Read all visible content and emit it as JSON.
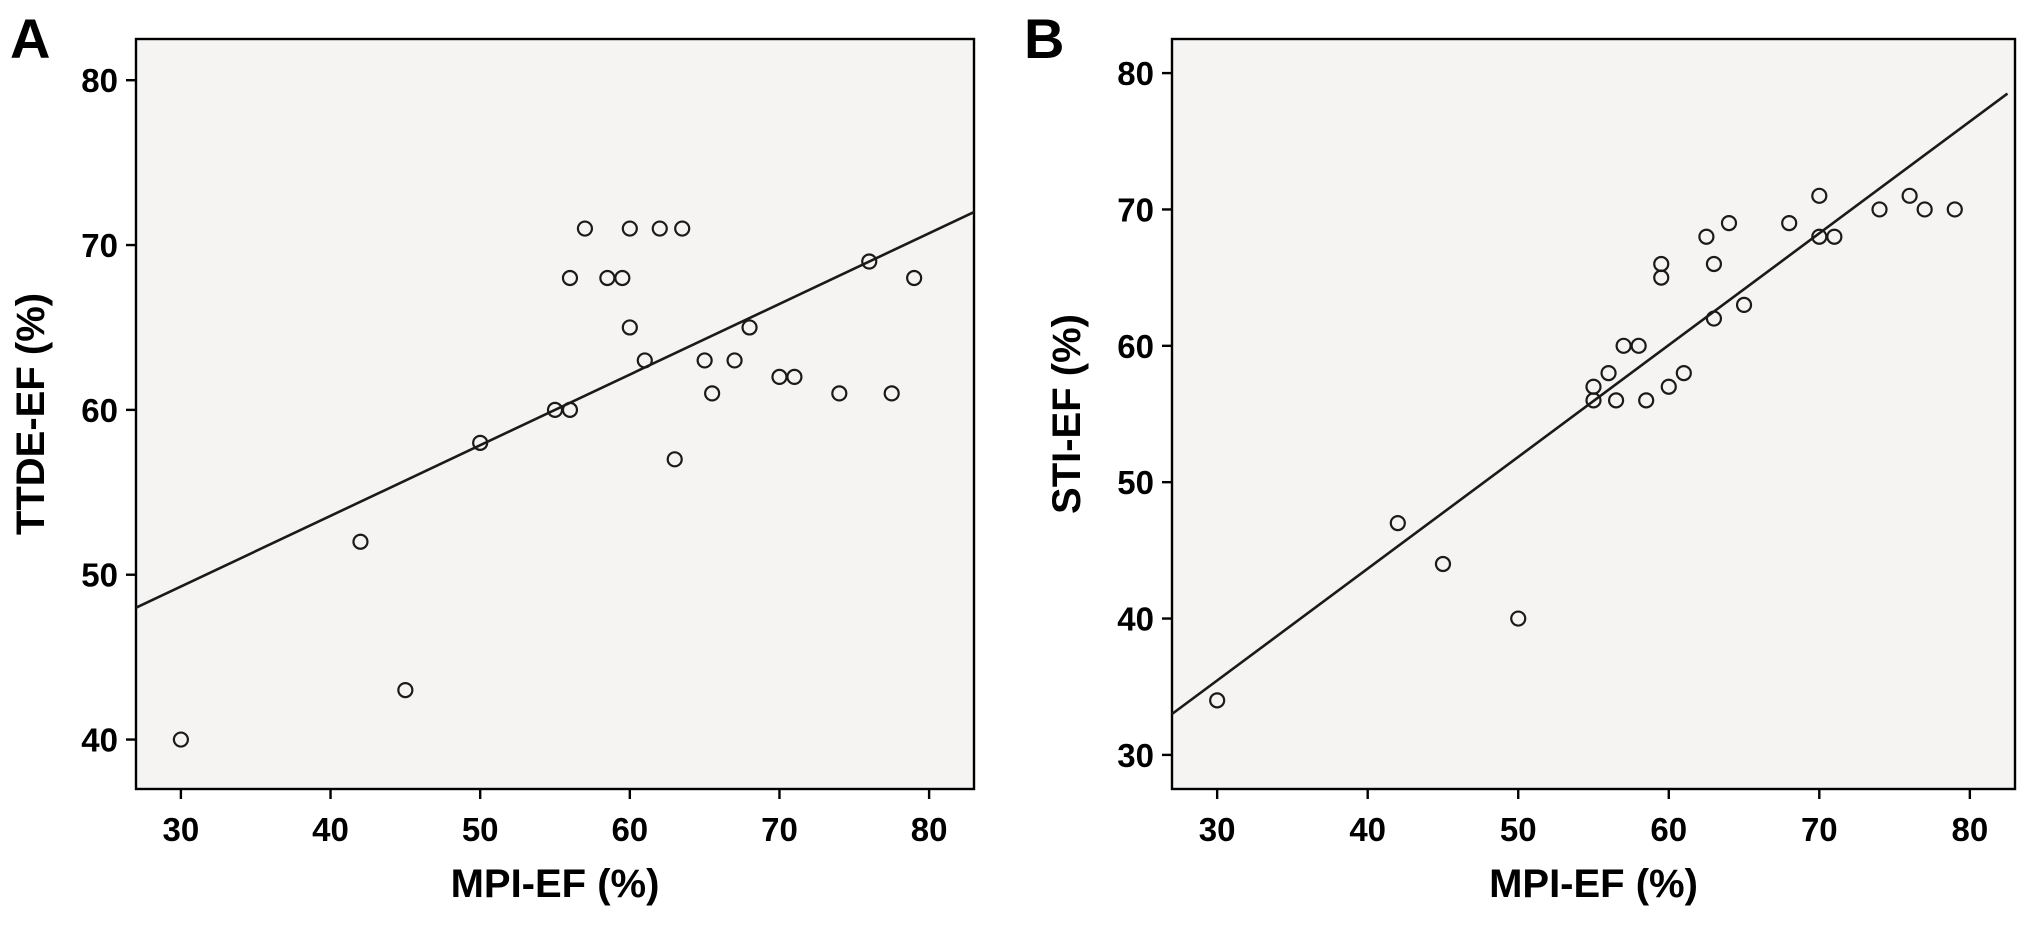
{
  "figure": {
    "background": "#ffffff",
    "plot_background": "#f5f4f2",
    "axis_color": "#000000",
    "point_color": "#1a1a1a",
    "line_color": "#1a1a1a"
  },
  "chart_data": [
    {
      "type": "scatter",
      "panel_label": "A",
      "title": "",
      "xlabel": "MPI-EF (%)",
      "ylabel": "TTDE-EF (%)",
      "xlim": [
        27,
        83
      ],
      "ylim": [
        37,
        82.5
      ],
      "xticks": [
        30,
        40,
        50,
        60,
        70,
        80
      ],
      "yticks": [
        40,
        50,
        60,
        70,
        80
      ],
      "regression_line": {
        "x": [
          27,
          83
        ],
        "y": [
          48,
          72
        ]
      },
      "points": [
        [
          30,
          40
        ],
        [
          42,
          52
        ],
        [
          45,
          43
        ],
        [
          50,
          58
        ],
        [
          55,
          60
        ],
        [
          56,
          60
        ],
        [
          56,
          68
        ],
        [
          57,
          71
        ],
        [
          58.5,
          68
        ],
        [
          59.5,
          68
        ],
        [
          60,
          71
        ],
        [
          60,
          65
        ],
        [
          61,
          63
        ],
        [
          62,
          71
        ],
        [
          63.5,
          71
        ],
        [
          63,
          57
        ],
        [
          65,
          63
        ],
        [
          65.5,
          61
        ],
        [
          67,
          63
        ],
        [
          68,
          65
        ],
        [
          70,
          62
        ],
        [
          71,
          62
        ],
        [
          74,
          61
        ],
        [
          76,
          69
        ],
        [
          77.5,
          61
        ],
        [
          79,
          68
        ]
      ],
      "legend": "none",
      "grid": false
    },
    {
      "type": "scatter",
      "panel_label": "B",
      "title": "",
      "xlabel": "MPI-EF (%)",
      "ylabel": "STI-EF (%)",
      "xlim": [
        27,
        83
      ],
      "ylim": [
        27.5,
        82.5
      ],
      "xticks": [
        30,
        40,
        50,
        60,
        70,
        80
      ],
      "yticks": [
        30,
        40,
        50,
        60,
        70,
        80
      ],
      "regression_line": {
        "x": [
          27,
          82.5
        ],
        "y": [
          33,
          78.5
        ]
      },
      "points": [
        [
          30,
          34
        ],
        [
          42,
          47
        ],
        [
          45,
          44
        ],
        [
          50,
          40
        ],
        [
          55,
          56
        ],
        [
          55,
          57
        ],
        [
          56,
          58
        ],
        [
          56.5,
          56
        ],
        [
          57,
          60
        ],
        [
          58,
          60
        ],
        [
          58.5,
          56
        ],
        [
          59.5,
          65
        ],
        [
          59.5,
          66
        ],
        [
          60,
          57
        ],
        [
          61,
          58
        ],
        [
          62.5,
          68
        ],
        [
          63,
          62
        ],
        [
          63,
          66
        ],
        [
          64,
          69
        ],
        [
          65,
          63
        ],
        [
          68,
          69
        ],
        [
          70,
          71
        ],
        [
          70,
          68
        ],
        [
          71,
          68
        ],
        [
          74,
          70
        ],
        [
          76,
          71
        ],
        [
          77,
          70
        ],
        [
          79,
          70
        ]
      ],
      "legend": "none",
      "grid": false
    }
  ]
}
